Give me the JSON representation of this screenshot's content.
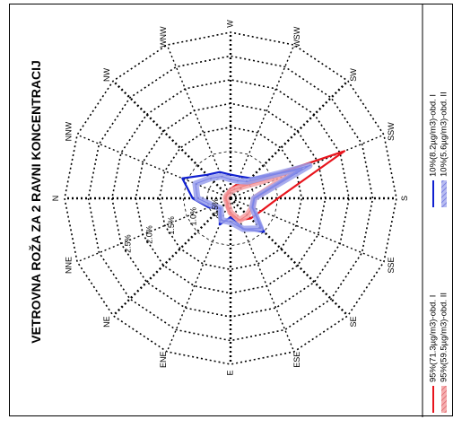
{
  "chart_data": {
    "type": "polar-line",
    "title": "VETROVNA ROŽA ZA 2 RAVNI KONCENTRACIJ",
    "directions": [
      "N",
      "NNE",
      "NE",
      "ENE",
      "E",
      "ESE",
      "SE",
      "SSE",
      "S",
      "SSW",
      "SW",
      "WSW",
      "W",
      "WNW",
      "NW",
      "NNW"
    ],
    "radial_ticks": [
      0.5,
      1.0,
      1.5,
      2.0,
      2.5
    ],
    "radial_tick_labels": [
      "0.5%",
      "1.0%",
      "1.5%",
      "2.0%",
      "2.5%"
    ],
    "rmax": 3.5,
    "series": [
      {
        "name": "95%(71.3µg/m3)-obd. I",
        "color": "#e8141c",
        "style": "line",
        "values": [
          0.1,
          0.1,
          0.1,
          0.2,
          0.35,
          0.5,
          0.6,
          0.7,
          1.0,
          2.6,
          0.4,
          0.3,
          0.2,
          0.15,
          0.1,
          0.1
        ]
      },
      {
        "name": "95%(59.5µg/m3)-obd. II",
        "color": "#f08080",
        "style": "band",
        "values": [
          0.1,
          0.1,
          0.1,
          0.15,
          0.3,
          0.5,
          0.5,
          0.5,
          0.5,
          1.4,
          0.35,
          0.2,
          0.15,
          0.1,
          0.1,
          0.1
        ]
      },
      {
        "name": "10%(8.2µg/m3)-obd. I",
        "color": "#1020d0",
        "style": "line",
        "values": [
          0.8,
          0.5,
          0.3,
          0.6,
          0.4,
          0.7,
          1.0,
          0.5,
          0.5,
          1.6,
          0.6,
          0.5,
          0.5,
          0.6,
          0.7,
          1.1
        ]
      },
      {
        "name": "10%(5.6µg/m3)-obd. II",
        "color": "#7a82e8",
        "style": "band",
        "values": [
          0.7,
          0.4,
          0.3,
          0.5,
          0.5,
          0.7,
          0.9,
          0.5,
          0.5,
          1.8,
          0.5,
          0.4,
          0.4,
          0.5,
          0.6,
          0.8
        ]
      }
    ]
  }
}
